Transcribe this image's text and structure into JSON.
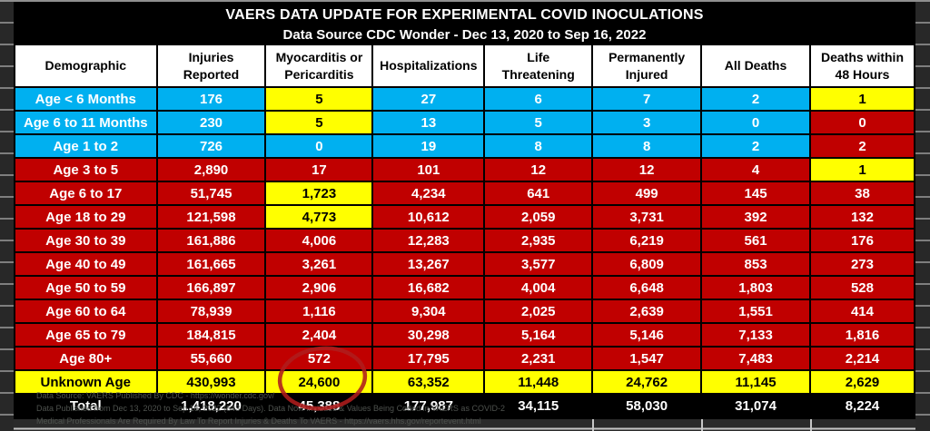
{
  "title": {
    "line1": "VAERS DATA UPDATE FOR EXPERIMENTAL COVID INOCULATIONS",
    "line2": "Data Source CDC Wonder - Dec 13, 2020 to Sep 16, 2022"
  },
  "footnotes": [
    "Data Source: VAERS Published By CDC - https://wonder.cdc.gov/",
    "Data Published from Dec 13, 2020 to Sep 16, 2022 (643 Days). Data Now Includes & Values Being Coded in VAERS as COVID-2",
    "Medical Professionals Are Required By Law To Report Injuries & Deaths To VAERS - https://vaers.hhs.gov/reportevent.html"
  ],
  "annotation": {
    "type": "hand-drawn-ellipse",
    "circled_value": "45,388",
    "color": "#ae1c1c"
  },
  "colors": {
    "infant_rows": "#00B0F0",
    "age_rows": "#C00000",
    "highlight": "#FFFF00",
    "header_bg": "#FFFFFF",
    "total_row_bg": "#000000"
  },
  "chart_data": {
    "type": "table",
    "title": "VAERS DATA UPDATE FOR EXPERIMENTAL COVID INOCULATIONS",
    "subtitle": "Data Source CDC Wonder - Dec 13, 2020 to Sep 16, 2022",
    "columns": [
      "Demographic",
      "Injuries\nReported",
      "Myocarditis or\nPericarditis",
      "Hospitalizations",
      "Life\nThreatening",
      "Permanently\nInjured",
      "All Deaths",
      "Deaths within\n48 Hours"
    ],
    "rows": [
      {
        "label": "Age < 6 Months",
        "row_color": "blue",
        "values": [
          "176",
          "5",
          "27",
          "6",
          "7",
          "2",
          "1"
        ],
        "highlights": {
          "1": "yellow",
          "6": "yellow"
        }
      },
      {
        "label": "Age 6 to 11 Months",
        "row_color": "blue",
        "values": [
          "230",
          "5",
          "13",
          "5",
          "3",
          "0",
          "0"
        ],
        "highlights": {
          "1": "yellow",
          "6": "red"
        }
      },
      {
        "label": "Age 1 to 2",
        "row_color": "blue",
        "values": [
          "726",
          "0",
          "19",
          "8",
          "8",
          "2",
          "2"
        ],
        "highlights": {
          "6": "red"
        }
      },
      {
        "label": "Age 3 to 5",
        "row_color": "red",
        "values": [
          "2,890",
          "17",
          "101",
          "12",
          "12",
          "4",
          "1"
        ],
        "highlights": {
          "6": "yellow"
        }
      },
      {
        "label": "Age 6 to 17",
        "row_color": "red",
        "values": [
          "51,745",
          "1,723",
          "4,234",
          "641",
          "499",
          "145",
          "38"
        ],
        "highlights": {
          "1": "yellow"
        }
      },
      {
        "label": "Age 18 to 29",
        "row_color": "red",
        "values": [
          "121,598",
          "4,773",
          "10,612",
          "2,059",
          "3,731",
          "392",
          "132"
        ],
        "highlights": {
          "1": "yellow"
        }
      },
      {
        "label": "Age 30 to 39",
        "row_color": "red",
        "values": [
          "161,886",
          "4,006",
          "12,283",
          "2,935",
          "6,219",
          "561",
          "176"
        ],
        "highlights": {}
      },
      {
        "label": "Age 40 to 49",
        "row_color": "red",
        "values": [
          "161,665",
          "3,261",
          "13,267",
          "3,577",
          "6,809",
          "853",
          "273"
        ],
        "highlights": {}
      },
      {
        "label": "Age 50 to 59",
        "row_color": "red",
        "values": [
          "166,897",
          "2,906",
          "16,682",
          "4,004",
          "6,648",
          "1,803",
          "528"
        ],
        "highlights": {}
      },
      {
        "label": "Age 60 to 64",
        "row_color": "red",
        "values": [
          "78,939",
          "1,116",
          "9,304",
          "2,025",
          "2,639",
          "1,551",
          "414"
        ],
        "highlights": {}
      },
      {
        "label": "Age 65 to 79",
        "row_color": "red",
        "values": [
          "184,815",
          "2,404",
          "30,298",
          "5,164",
          "5,146",
          "7,133",
          "1,816"
        ],
        "highlights": {}
      },
      {
        "label": "Age 80+",
        "row_color": "red",
        "values": [
          "55,660",
          "572",
          "17,795",
          "2,231",
          "1,547",
          "7,483",
          "2,214"
        ],
        "highlights": {}
      },
      {
        "label": "Unknown Age",
        "row_color": "yellow",
        "values": [
          "430,993",
          "24,600",
          "63,352",
          "11,448",
          "24,762",
          "11,145",
          "2,629"
        ],
        "highlights": {}
      },
      {
        "label": "Total",
        "row_color": "black",
        "values": [
          "1,418,220",
          "45,388",
          "177,987",
          "34,115",
          "58,030",
          "31,074",
          "8,224"
        ],
        "highlights": {}
      }
    ]
  }
}
